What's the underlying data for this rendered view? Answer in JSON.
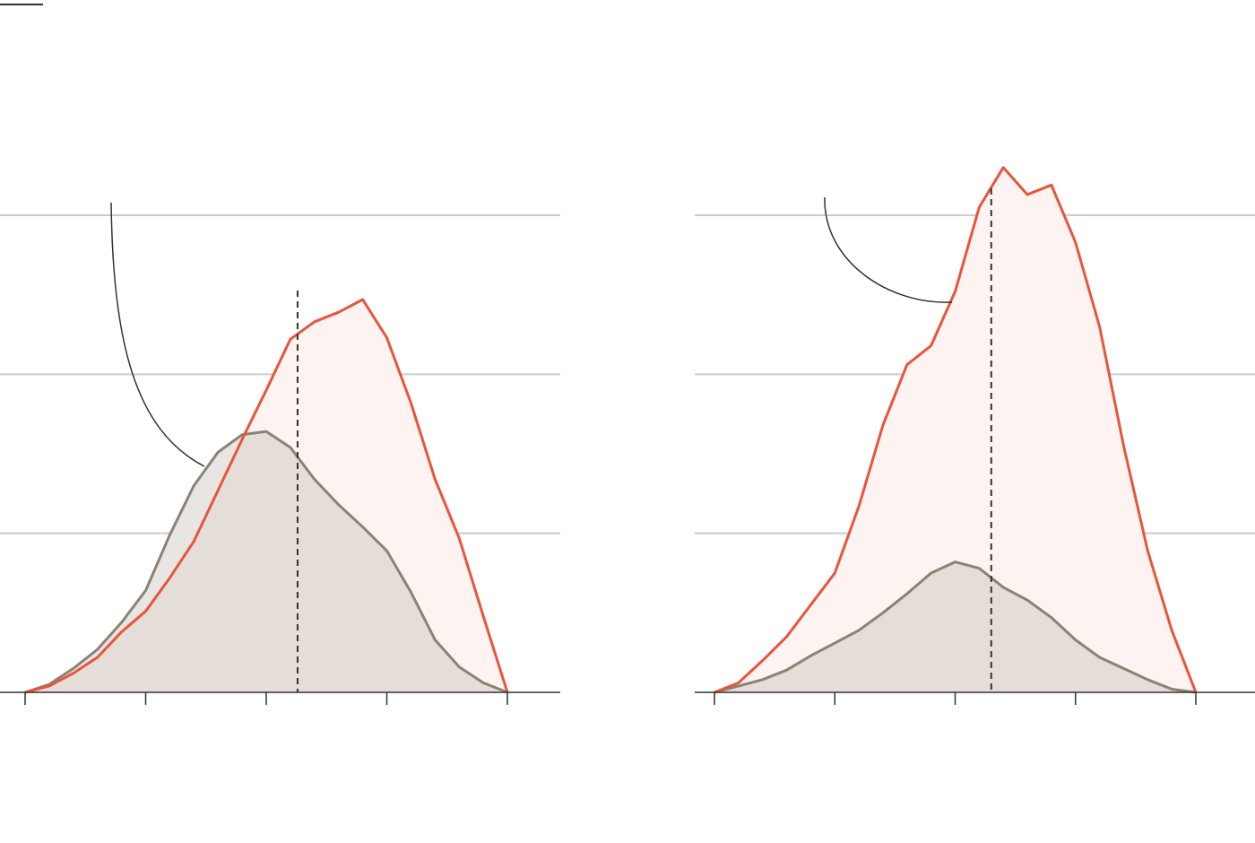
{
  "colors": {
    "accent_line": "#e8553d",
    "accent_fill": "#fdf4f1",
    "neutral_line": "#8c8274",
    "neutral_fill": "#e4ddd8",
    "neutral_fill_light": "#e6e5e1",
    "grid": "#cccccc",
    "axis": "#333333",
    "marker": "#333333",
    "brand_rule": "#333333"
  },
  "chart_data": [
    {
      "type": "area",
      "title": "",
      "xlabel": "",
      "ylabel": "",
      "xlim": [
        0,
        20
      ],
      "ylim": [
        0,
        3
      ],
      "grid": "horizontal",
      "yticks": [
        0,
        1,
        2,
        3
      ],
      "xticks": [
        0,
        5,
        10,
        15,
        20
      ],
      "tick_labels": [],
      "reference_line_x": 11.3,
      "series": [
        {
          "role": "accent",
          "x": [
            0,
            1,
            2,
            3,
            4,
            5,
            6,
            7,
            8,
            9,
            10,
            11,
            12,
            13,
            14,
            15,
            16,
            17,
            18,
            19,
            20
          ],
          "values": [
            0,
            0.04,
            0.12,
            0.22,
            0.38,
            0.51,
            0.72,
            0.95,
            1.27,
            1.59,
            1.9,
            2.22,
            2.33,
            2.39,
            2.47,
            2.23,
            1.82,
            1.34,
            0.97,
            0.48,
            0
          ]
        },
        {
          "role": "neutral",
          "x": [
            0,
            1,
            2,
            3,
            4,
            5,
            6,
            7,
            8,
            9,
            10,
            11,
            12,
            13,
            14,
            15,
            16,
            17,
            18,
            19,
            20
          ],
          "values": [
            0,
            0.05,
            0.15,
            0.27,
            0.44,
            0.64,
            0.99,
            1.3,
            1.51,
            1.62,
            1.64,
            1.54,
            1.34,
            1.18,
            1.04,
            0.89,
            0.63,
            0.33,
            0.16,
            0.06,
            0
          ]
        }
      ]
    },
    {
      "type": "area",
      "title": "",
      "xlabel": "",
      "ylabel": "",
      "xlim": [
        0,
        20
      ],
      "ylim": [
        0,
        3
      ],
      "grid": "horizontal",
      "yticks": [
        0,
        1,
        2,
        3
      ],
      "xticks": [
        0,
        5,
        10,
        15,
        20
      ],
      "tick_labels": [],
      "reference_line_x": 11.5,
      "series": [
        {
          "role": "accent",
          "x": [
            0,
            1,
            2,
            3,
            4,
            5,
            6,
            7,
            8,
            9,
            10,
            11,
            12,
            13,
            14,
            15,
            16,
            17,
            18,
            19,
            20
          ],
          "values": [
            0,
            0.06,
            0.2,
            0.35,
            0.55,
            0.75,
            1.17,
            1.68,
            2.06,
            2.18,
            2.52,
            3.05,
            3.3,
            3.13,
            3.19,
            2.83,
            2.3,
            1.55,
            0.89,
            0.39,
            0
          ]
        },
        {
          "role": "neutral",
          "x": [
            0,
            1,
            2,
            3,
            4,
            5,
            6,
            7,
            8,
            9,
            10,
            11,
            12,
            13,
            14,
            15,
            16,
            17,
            18,
            19,
            20
          ],
          "values": [
            0,
            0.04,
            0.08,
            0.14,
            0.23,
            0.31,
            0.39,
            0.5,
            0.62,
            0.75,
            0.82,
            0.78,
            0.66,
            0.58,
            0.47,
            0.33,
            0.22,
            0.15,
            0.08,
            0.02,
            0
          ]
        }
      ]
    }
  ]
}
